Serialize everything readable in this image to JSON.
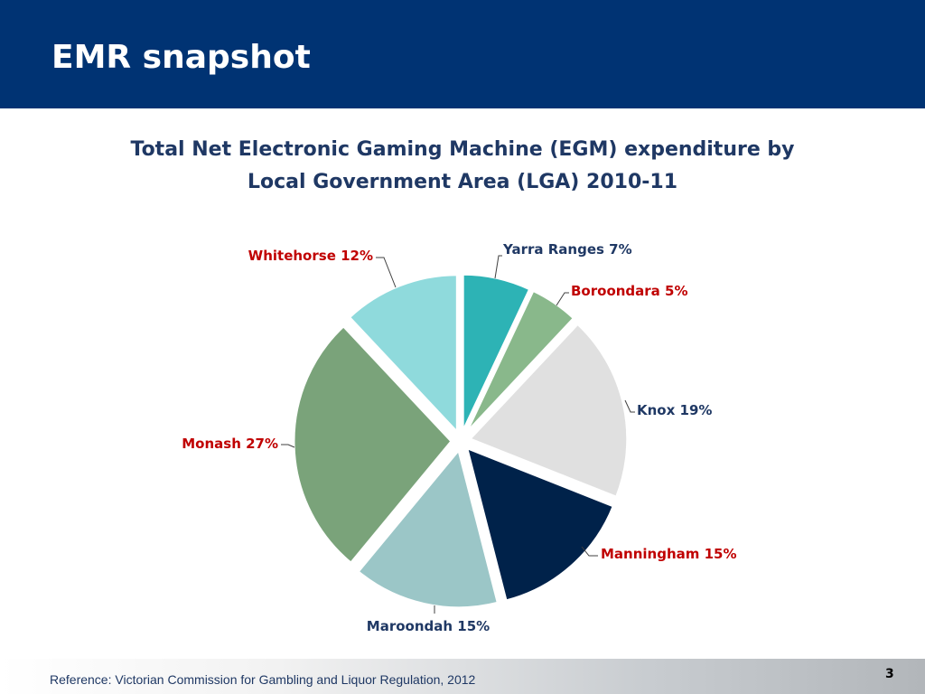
{
  "header": {
    "title": "EMR snapshot",
    "background_color": "#003373"
  },
  "chart_data": {
    "type": "pie",
    "title_line1": "Total Net Electronic Gaming Machine (EGM) expenditure by",
    "title_line2": "Local Government Area (LGA) 2010-11",
    "slices": [
      {
        "name": "Yarra Ranges",
        "value": 7,
        "label": "Yarra Ranges 7%",
        "color": "#2db3b5",
        "label_color": "#1f3864"
      },
      {
        "name": "Boroondara",
        "value": 5,
        "label": "Boroondara 5%",
        "color": "#89b88b",
        "label_color": "#c00000"
      },
      {
        "name": "Knox",
        "value": 19,
        "label": "Knox 19%",
        "color": "#e0e0e0",
        "label_color": "#1f3864"
      },
      {
        "name": "Manningham",
        "value": 15,
        "label": "Manningham 15%",
        "color": "#00224a",
        "label_color": "#c00000"
      },
      {
        "name": "Maroondah",
        "value": 15,
        "label": "Maroondah 15%",
        "color": "#9bc6c7",
        "label_color": "#1f3864"
      },
      {
        "name": "Monash",
        "value": 27,
        "label": "Monash 27%",
        "color": "#7aa37a",
        "label_color": "#c00000"
      },
      {
        "name": "Whitehorse",
        "value": 12,
        "label": "Whitehorse 12%",
        "color": "#8fdadc",
        "label_color": "#c00000"
      }
    ],
    "start": "12 o'clock",
    "direction": "clockwise",
    "exploded": true,
    "legend": "none"
  },
  "footer": {
    "reference": "Reference: Victorian Commission for Gambling and Liquor Regulation, 2012",
    "page_number": "3"
  }
}
